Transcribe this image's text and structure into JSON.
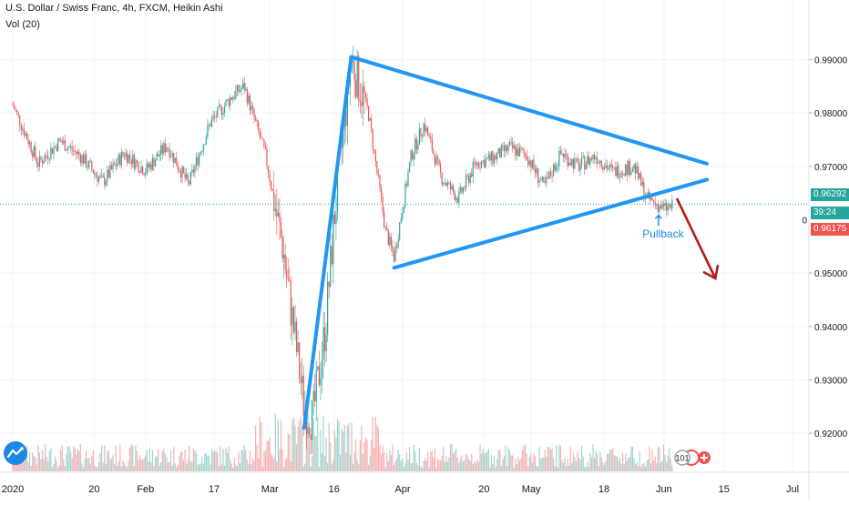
{
  "header": {
    "title": "U.S. Dollar / Swiss Franc, 4h, FXCM, Heikin Ashi",
    "volume_label": "Vol (20)"
  },
  "price_axis": {
    "ticks": [
      "0.99000",
      "0.98000",
      "0.97000",
      "0.95000",
      "0.94000",
      "0.93000",
      "0.92000"
    ],
    "partial_label": "0",
    "last_price": "0.96292",
    "countdown": "39:24",
    "marked_price": "0.96175"
  },
  "colors": {
    "up": "#26a69a",
    "down": "#ef5350",
    "trendline": "#2196f3",
    "arrow": "#b71c1c",
    "grid": "#f0f3fa",
    "text": "#131722"
  },
  "annotations": {
    "pullback": "Pullback",
    "bubble": "101"
  },
  "chart_data": {
    "type": "candlestick",
    "title": "U.S. Dollar / Swiss Franc, 4h, FXCM, Heikin Ashi",
    "ylim": [
      0.9115,
      0.994
    ],
    "x_labels": [
      "2020",
      "20",
      "Feb",
      "17",
      "Mar",
      "16",
      "Apr",
      "20",
      "May",
      "18",
      "Jun",
      "15",
      "Jul"
    ],
    "y_ticks": [
      0.99,
      0.98,
      0.97,
      0.95,
      0.94,
      0.93,
      0.92
    ],
    "last_price": 0.96292,
    "marked_price": 0.96175,
    "price_path": [
      {
        "date": "2020-01-01",
        "price": 0.9815
      },
      {
        "date": "2020-01-07",
        "price": 0.9705
      },
      {
        "date": "2020-01-12",
        "price": 0.9748
      },
      {
        "date": "2020-01-17",
        "price": 0.9718
      },
      {
        "date": "2020-01-22",
        "price": 0.967
      },
      {
        "date": "2020-01-27",
        "price": 0.9725
      },
      {
        "date": "2020-02-01",
        "price": 0.9692
      },
      {
        "date": "2020-02-06",
        "price": 0.974
      },
      {
        "date": "2020-02-11",
        "price": 0.9665
      },
      {
        "date": "2020-02-16",
        "price": 0.978
      },
      {
        "date": "2020-02-21",
        "price": 0.983
      },
      {
        "date": "2020-02-24",
        "price": 0.985
      },
      {
        "date": "2020-02-29",
        "price": 0.972
      },
      {
        "date": "2020-03-04",
        "price": 0.955
      },
      {
        "date": "2020-03-09",
        "price": 0.925
      },
      {
        "date": "2020-03-11",
        "price": 0.9225
      },
      {
        "date": "2020-03-14",
        "price": 0.94
      },
      {
        "date": "2020-03-16",
        "price": 0.96
      },
      {
        "date": "2020-03-20",
        "price": 0.99
      },
      {
        "date": "2020-03-24",
        "price": 0.98
      },
      {
        "date": "2020-03-28",
        "price": 0.958
      },
      {
        "date": "2020-03-30",
        "price": 0.953
      },
      {
        "date": "2020-04-03",
        "price": 0.972
      },
      {
        "date": "2020-04-06",
        "price": 0.978
      },
      {
        "date": "2020-04-10",
        "price": 0.968
      },
      {
        "date": "2020-04-14",
        "price": 0.964
      },
      {
        "date": "2020-04-18",
        "price": 0.9705
      },
      {
        "date": "2020-04-22",
        "price": 0.9715
      },
      {
        "date": "2020-04-26",
        "price": 0.9735
      },
      {
        "date": "2020-04-30",
        "price": 0.972
      },
      {
        "date": "2020-05-04",
        "price": 0.966
      },
      {
        "date": "2020-05-08",
        "price": 0.9725
      },
      {
        "date": "2020-05-12",
        "price": 0.97
      },
      {
        "date": "2020-05-16",
        "price": 0.972
      },
      {
        "date": "2020-05-20",
        "price": 0.969
      },
      {
        "date": "2020-05-25",
        "price": 0.97
      },
      {
        "date": "2020-05-28",
        "price": 0.964
      },
      {
        "date": "2020-06-01",
        "price": 0.962
      },
      {
        "date": "2020-06-03",
        "price": 0.9625
      }
    ],
    "trendlines": [
      {
        "name": "rally",
        "from": {
          "date": "2020-03-09",
          "price": 0.921
        },
        "to": {
          "date": "2020-03-20",
          "price": 0.9905
        }
      },
      {
        "name": "upper",
        "from": {
          "date": "2020-03-20",
          "price": 0.9905
        },
        "to": {
          "date": "2020-06-11",
          "price": 0.9705
        }
      },
      {
        "name": "lower",
        "from": {
          "date": "2020-03-30",
          "price": 0.951
        },
        "to": {
          "date": "2020-06-11",
          "price": 0.9675
        }
      },
      {
        "name": "projection",
        "from": {
          "date": "2020-06-04",
          "price": 0.964
        },
        "to": {
          "date": "2020-06-13",
          "price": 0.949
        }
      }
    ],
    "legend": "none",
    "grid": true
  }
}
